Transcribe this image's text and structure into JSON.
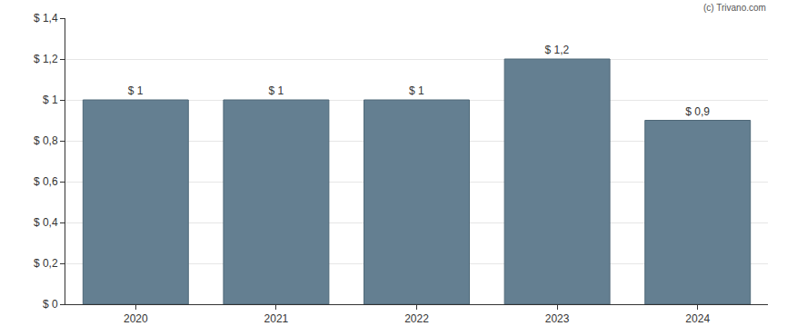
{
  "chart_data": {
    "type": "bar",
    "categories": [
      "2020",
      "2021",
      "2022",
      "2023",
      "2024"
    ],
    "values": [
      1,
      1,
      1,
      1.2,
      0.9
    ],
    "value_labels": [
      "$ 1",
      "$ 1",
      "$ 1",
      "$ 1,2",
      "$ 0,9"
    ],
    "data_labels": true,
    "color": "#647f91",
    "ylim": [
      0,
      1.4
    ],
    "yticks": [
      {
        "value": 0,
        "label": "$ 0"
      },
      {
        "value": 0.2,
        "label": "$ 0,2"
      },
      {
        "value": 0.4,
        "label": "$ 0,4"
      },
      {
        "value": 0.6,
        "label": "$ 0,6"
      },
      {
        "value": 0.8,
        "label": "$ 0,8"
      },
      {
        "value": 1,
        "label": "$ 1"
      },
      {
        "value": 1.2,
        "label": "$ 1,2"
      },
      {
        "value": 1.4,
        "label": "$ 1,4"
      }
    ],
    "grid": true,
    "annotations": [
      "(c) Trivano.com"
    ]
  }
}
